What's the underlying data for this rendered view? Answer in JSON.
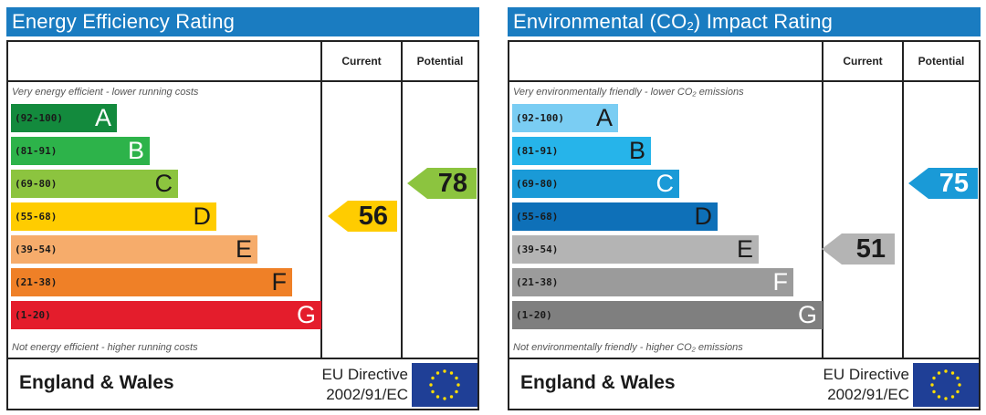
{
  "colors": {
    "title_bg": "#1a7cc1",
    "energy_bands": [
      "#138a3d",
      "#2db34a",
      "#8cc43f",
      "#ffcc00",
      "#f6ac6b",
      "#ef8027",
      "#e41d2c"
    ],
    "env_bands": [
      "#7acdf3",
      "#26b4ea",
      "#1a9ad7",
      "#0e70b8",
      "#b4b4b4",
      "#9b9b9b",
      "#7f7f7f"
    ]
  },
  "chart_data": [
    {
      "type": "bar",
      "title": "Energy Efficiency Rating",
      "column_current": "Current",
      "column_potential": "Potential",
      "top_note": "Very energy efficient - lower running costs",
      "bottom_note": "Not energy efficient - higher running costs",
      "categories": [
        "(92-100)",
        "(81-91)",
        "(69-80)",
        "(55-68)",
        "(39-54)",
        "(21-38)",
        "(1-20)"
      ],
      "letters": [
        "A",
        "B",
        "C",
        "D",
        "E",
        "F",
        "G"
      ],
      "current": 56,
      "potential": 78,
      "current_band": "D",
      "potential_band": "C",
      "region": "England & Wales",
      "directive_line1": "EU Directive",
      "directive_line2": "2002/91/EC"
    },
    {
      "type": "bar",
      "title_prefix": "Environmental (CO",
      "title_sub": "2",
      "title_suffix": ") Impact Rating",
      "column_current": "Current",
      "column_potential": "Potential",
      "top_note": "Very environmentally friendly - lower CO₂ emissions",
      "bottom_note": "Not environmentally friendly - higher CO₂ emissions",
      "categories": [
        "(92-100)",
        "(81-91)",
        "(69-80)",
        "(55-68)",
        "(39-54)",
        "(21-38)",
        "(1-20)"
      ],
      "letters": [
        "A",
        "B",
        "C",
        "D",
        "E",
        "F",
        "G"
      ],
      "current": 51,
      "potential": 75,
      "current_band": "E",
      "potential_band": "C",
      "region": "England & Wales",
      "directive_line1": "EU Directive",
      "directive_line2": "2002/91/EC"
    }
  ]
}
